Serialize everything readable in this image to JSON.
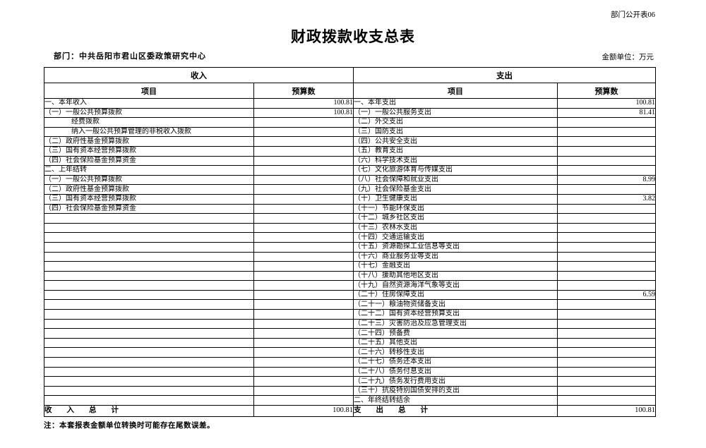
{
  "page": {
    "doc_label": "部门公开表06",
    "title": "财政拨款收支总表",
    "department": "部门：中共岳阳市君山区委政策研究中心",
    "unit": "金额单位：万元",
    "note": "注：本套报表金额单位转换时可能存在尾数误差。"
  },
  "table": {
    "income_section": "收入",
    "expense_section": "支出",
    "item_col": "项目",
    "budget_col": "预算数",
    "rows": [
      {
        "income_item": "一、本年收入",
        "income_indent": false,
        "income_value": "100.81",
        "expense_item": "一、本年支出",
        "expense_value": "100.81"
      },
      {
        "income_item": "（一）一般公共预算拨款",
        "income_indent": false,
        "income_value": "100.81",
        "expense_item": "（一）一般公共服务支出",
        "expense_value": "81.41"
      },
      {
        "income_item": "经费拨款",
        "income_indent": true,
        "income_value": "",
        "expense_item": "（二）外交支出",
        "expense_value": ""
      },
      {
        "income_item": "纳入一般公共预算管理的非税收入拨款",
        "income_indent": true,
        "income_value": "",
        "expense_item": "（三）国防支出",
        "expense_value": ""
      },
      {
        "income_item": "（二）政府性基金预算拨款",
        "income_indent": false,
        "income_value": "",
        "expense_item": "（四）公共安全支出",
        "expense_value": ""
      },
      {
        "income_item": "（三）国有资本经营预算拨款",
        "income_indent": false,
        "income_value": "",
        "expense_item": "（五）教育支出",
        "expense_value": ""
      },
      {
        "income_item": "（四）社会保险基金预算资金",
        "income_indent": false,
        "income_value": "",
        "expense_item": "（六）科学技术支出",
        "expense_value": ""
      },
      {
        "income_item": "二、上年结转",
        "income_indent": false,
        "income_value": "",
        "expense_item": "（七）文化旅游体育与传媒支出",
        "expense_value": ""
      },
      {
        "income_item": "（一）一般公共预算拨款",
        "income_indent": false,
        "income_value": "",
        "expense_item": "（八）社会保障和就业支出",
        "expense_value": "8.99"
      },
      {
        "income_item": "（二）政府性基金预算拨款",
        "income_indent": false,
        "income_value": "",
        "expense_item": "（九）社会保险基金支出",
        "expense_value": ""
      },
      {
        "income_item": "（三）国有资本经营预算拨款",
        "income_indent": false,
        "income_value": "",
        "expense_item": "（十）卫生健康支出",
        "expense_value": "3.82"
      },
      {
        "income_item": "（四）社会保险基金预算资金",
        "income_indent": false,
        "income_value": "",
        "expense_item": "（十一）节能环保支出",
        "expense_value": ""
      },
      {
        "income_item": "",
        "income_indent": false,
        "income_value": "",
        "expense_item": "（十二）城乡社区支出",
        "expense_value": ""
      },
      {
        "income_item": "",
        "income_indent": false,
        "income_value": "",
        "expense_item": "（十三）农林水支出",
        "expense_value": ""
      },
      {
        "income_item": "",
        "income_indent": false,
        "income_value": "",
        "expense_item": "（十四）交通运输支出",
        "expense_value": ""
      },
      {
        "income_item": "",
        "income_indent": false,
        "income_value": "",
        "expense_item": "（十五）资源勘探工业信息等支出",
        "expense_value": ""
      },
      {
        "income_item": "",
        "income_indent": false,
        "income_value": "",
        "expense_item": "（十六）商业服务业等支出",
        "expense_value": ""
      },
      {
        "income_item": "",
        "income_indent": false,
        "income_value": "",
        "expense_item": "（十七）金融支出",
        "expense_value": ""
      },
      {
        "income_item": "",
        "income_indent": false,
        "income_value": "",
        "expense_item": "（十八）援助其他地区支出",
        "expense_value": ""
      },
      {
        "income_item": "",
        "income_indent": false,
        "income_value": "",
        "expense_item": "（十九）自然资源海洋气象等支出",
        "expense_value": ""
      },
      {
        "income_item": "",
        "income_indent": false,
        "income_value": "",
        "expense_item": "（二十）住房保障支出",
        "expense_value": "6.59"
      },
      {
        "income_item": "",
        "income_indent": false,
        "income_value": "",
        "expense_item": "（二十一）粮油物资储备支出",
        "expense_value": ""
      },
      {
        "income_item": "",
        "income_indent": false,
        "income_value": "",
        "expense_item": "（二十二）国有资本经营预算支出",
        "expense_value": ""
      },
      {
        "income_item": "",
        "income_indent": false,
        "income_value": "",
        "expense_item": "（二十三）灾害防治及应急管理支出",
        "expense_value": ""
      },
      {
        "income_item": "",
        "income_indent": false,
        "income_value": "",
        "expense_item": "（二十四）预备费",
        "expense_value": ""
      },
      {
        "income_item": "",
        "income_indent": false,
        "income_value": "",
        "expense_item": "（二十五）其他支出",
        "expense_value": ""
      },
      {
        "income_item": "",
        "income_indent": false,
        "income_value": "",
        "expense_item": "（二十六）转移性支出",
        "expense_value": ""
      },
      {
        "income_item": "",
        "income_indent": false,
        "income_value": "",
        "expense_item": "（二十七）债务还本支出",
        "expense_value": ""
      },
      {
        "income_item": "",
        "income_indent": false,
        "income_value": "",
        "expense_item": "（二十八）债务付息支出",
        "expense_value": ""
      },
      {
        "income_item": "",
        "income_indent": false,
        "income_value": "",
        "expense_item": "（二十九）债务发行费用支出",
        "expense_value": ""
      },
      {
        "income_item": "",
        "income_indent": false,
        "income_value": "",
        "expense_item": "（三十）抗疫特别国债安排的支出",
        "expense_value": ""
      },
      {
        "income_item": "",
        "income_indent": false,
        "income_value": "",
        "expense_item": "二、年终结转结余",
        "expense_value": ""
      }
    ],
    "totals": {
      "income_label": "收　　入　　总　　计",
      "income_value": "100.81",
      "expense_label": "支　　出　　总　　计",
      "expense_value": "100.81"
    }
  }
}
